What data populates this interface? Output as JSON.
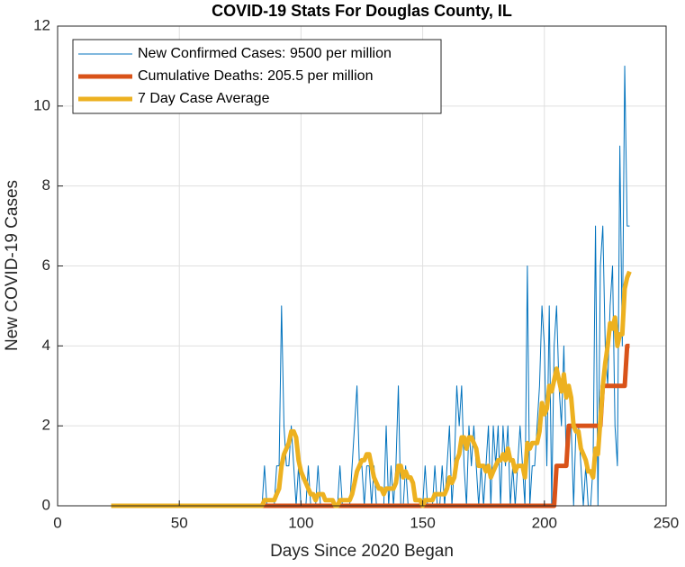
{
  "chart_data": {
    "type": "line",
    "title": "COVID-19 Stats For Douglas County, IL",
    "x_label": "Days Since 2020 Began",
    "y_label": "New COVID-19 Cases",
    "xlim": [
      0,
      250
    ],
    "xticks": [
      0,
      50,
      100,
      150,
      200,
      250
    ],
    "ylim": [
      0,
      12
    ],
    "yticks": [
      0,
      2,
      4,
      6,
      8,
      10,
      12
    ],
    "grid": true,
    "legend_position": "upper-left",
    "x": [
      22,
      23,
      24,
      25,
      26,
      27,
      28,
      29,
      30,
      31,
      32,
      33,
      34,
      35,
      36,
      37,
      38,
      39,
      40,
      41,
      42,
      43,
      44,
      45,
      46,
      47,
      48,
      49,
      50,
      51,
      52,
      53,
      54,
      55,
      56,
      57,
      58,
      59,
      60,
      61,
      62,
      63,
      64,
      65,
      66,
      67,
      68,
      69,
      70,
      71,
      72,
      73,
      74,
      75,
      76,
      77,
      78,
      79,
      80,
      81,
      82,
      83,
      84,
      85,
      86,
      87,
      88,
      89,
      90,
      91,
      92,
      93,
      94,
      95,
      96,
      97,
      98,
      99,
      100,
      101,
      102,
      103,
      104,
      105,
      106,
      107,
      108,
      109,
      110,
      111,
      112,
      113,
      114,
      115,
      116,
      117,
      118,
      119,
      120,
      121,
      122,
      123,
      124,
      125,
      126,
      127,
      128,
      129,
      130,
      131,
      132,
      133,
      134,
      135,
      136,
      137,
      138,
      139,
      140,
      141,
      142,
      143,
      144,
      145,
      146,
      147,
      148,
      149,
      150,
      151,
      152,
      153,
      154,
      155,
      156,
      157,
      158,
      159,
      160,
      161,
      162,
      163,
      164,
      165,
      166,
      167,
      168,
      169,
      170,
      171,
      172,
      173,
      174,
      175,
      176,
      177,
      178,
      179,
      180,
      181,
      182,
      183,
      184,
      185,
      186,
      187,
      188,
      189,
      190,
      191,
      192,
      193,
      194,
      195,
      196,
      197,
      198,
      199,
      200,
      201,
      202,
      203,
      204,
      205,
      206,
      207,
      208,
      209,
      210,
      211,
      212,
      213,
      214,
      215,
      216,
      217,
      218,
      219,
      220,
      221,
      222,
      223,
      224,
      225,
      226,
      227,
      228,
      229,
      230,
      231,
      232,
      233,
      234,
      235
    ],
    "series": [
      {
        "name": "New Confirmed Cases: 9500 per million",
        "color": "#0072BD",
        "width": 1,
        "values": [
          0,
          0,
          0,
          0,
          0,
          0,
          0,
          0,
          0,
          0,
          0,
          0,
          0,
          0,
          0,
          0,
          0,
          0,
          0,
          0,
          0,
          0,
          0,
          0,
          0,
          0,
          0,
          0,
          0,
          0,
          0,
          0,
          0,
          0,
          0,
          0,
          0,
          0,
          0,
          0,
          0,
          0,
          0,
          0,
          0,
          0,
          0,
          0,
          0,
          0,
          0,
          0,
          0,
          0,
          0,
          0,
          0,
          0,
          0,
          0,
          0,
          0,
          0,
          1,
          0,
          0,
          0,
          0,
          1,
          1,
          5,
          2,
          1,
          1,
          2,
          1,
          0,
          1,
          0,
          0,
          0,
          1,
          0,
          0,
          0,
          1,
          0,
          0,
          0,
          0,
          0,
          0,
          0,
          0,
          1,
          0,
          0,
          0,
          0,
          1,
          2,
          3,
          1,
          1,
          0,
          1,
          1,
          0,
          1,
          0,
          0,
          0,
          0,
          2,
          0,
          1,
          0,
          1,
          3,
          0,
          0,
          1,
          0,
          0,
          0,
          0,
          0,
          0,
          0,
          1,
          0,
          0,
          0,
          1,
          0,
          0,
          1,
          0,
          1,
          2,
          0,
          1,
          3,
          2,
          3,
          1,
          0,
          2,
          1,
          2,
          1,
          0,
          1,
          0,
          1,
          2,
          0,
          2,
          1,
          2,
          0,
          2,
          1,
          2,
          0,
          1,
          0,
          1,
          2,
          1,
          0,
          6,
          0,
          1,
          1,
          2,
          3,
          5,
          4,
          1,
          5,
          0,
          4,
          5,
          3,
          2,
          4,
          1,
          2,
          2,
          0,
          2,
          2,
          1,
          0,
          1,
          0,
          0,
          1,
          7,
          0,
          6,
          7,
          4,
          3,
          5,
          6,
          2,
          1,
          9,
          4,
          11,
          7,
          7
        ]
      },
      {
        "name": "Cumulative Deaths: 205.5 per million",
        "color": "#D95319",
        "width": 5,
        "values": [
          0,
          0,
          0,
          0,
          0,
          0,
          0,
          0,
          0,
          0,
          0,
          0,
          0,
          0,
          0,
          0,
          0,
          0,
          0,
          0,
          0,
          0,
          0,
          0,
          0,
          0,
          0,
          0,
          0,
          0,
          0,
          0,
          0,
          0,
          0,
          0,
          0,
          0,
          0,
          0,
          0,
          0,
          0,
          0,
          0,
          0,
          0,
          0,
          0,
          0,
          0,
          0,
          0,
          0,
          0,
          0,
          0,
          0,
          0,
          0,
          0,
          0,
          0,
          0,
          0,
          0,
          0,
          0,
          0,
          0,
          0,
          0,
          0,
          0,
          0,
          0,
          0,
          0,
          0,
          0,
          0,
          0,
          0,
          0,
          0,
          0,
          0,
          0,
          0,
          0,
          0,
          0,
          0,
          0,
          0,
          0,
          0,
          0,
          0,
          0,
          0,
          0,
          0,
          0,
          0,
          0,
          0,
          0,
          0,
          0,
          0,
          0,
          0,
          0,
          0,
          0,
          0,
          0,
          0,
          0,
          0,
          0,
          0,
          0,
          0,
          0,
          0,
          0,
          0,
          0,
          0,
          0,
          0,
          0,
          0,
          0,
          0,
          0,
          0,
          0,
          0,
          0,
          0,
          0,
          0,
          0,
          0,
          0,
          0,
          0,
          0,
          0,
          0,
          0,
          0,
          0,
          0,
          0,
          0,
          0,
          0,
          0,
          0,
          0,
          0,
          0,
          0,
          0,
          0,
          0,
          0,
          0,
          0,
          0,
          0,
          0,
          0,
          0,
          0,
          0,
          0,
          0,
          0,
          1,
          1,
          1,
          1,
          1,
          2,
          2,
          2,
          2,
          2,
          2,
          2,
          2,
          2,
          2,
          2,
          2,
          2,
          2,
          3,
          3,
          3,
          3,
          3,
          3,
          3,
          3,
          3,
          3,
          4,
          4
        ]
      },
      {
        "name": "7 Day Case Average",
        "color": "#EDB120",
        "width": 5,
        "values": [
          0,
          0,
          0,
          0,
          0,
          0,
          0,
          0,
          0,
          0,
          0,
          0,
          0,
          0,
          0,
          0,
          0,
          0,
          0,
          0,
          0,
          0,
          0,
          0,
          0,
          0,
          0,
          0,
          0,
          0,
          0,
          0,
          0,
          0,
          0,
          0,
          0,
          0,
          0,
          0,
          0,
          0,
          0,
          0,
          0,
          0,
          0,
          0,
          0,
          0,
          0,
          0,
          0,
          0,
          0,
          0,
          0,
          0,
          0,
          0,
          0,
          0,
          0,
          0.14,
          0.14,
          0.14,
          0.14,
          0.14,
          0.29,
          0.43,
          1,
          1.29,
          1.43,
          1.57,
          1.86,
          1.86,
          1.71,
          1.14,
          0.86,
          0.71,
          0.57,
          0.43,
          0.29,
          0.29,
          0.14,
          0.29,
          0.29,
          0.29,
          0.14,
          0.14,
          0.14,
          0.14,
          0,
          0,
          0.14,
          0.14,
          0.14,
          0.14,
          0.14,
          0.29,
          0.57,
          0.86,
          1,
          1.14,
          1.14,
          1.29,
          1.29,
          1,
          0.71,
          0.57,
          0.43,
          0.43,
          0.29,
          0.43,
          0.43,
          0.43,
          0.43,
          0.57,
          1,
          1,
          0.71,
          0.86,
          0.71,
          0.71,
          0.57,
          0.14,
          0.14,
          0.14,
          0,
          0.14,
          0.14,
          0.14,
          0.14,
          0.29,
          0.29,
          0.29,
          0.29,
          0.29,
          0.43,
          0.71,
          0.57,
          0.71,
          1.14,
          1.29,
          1.71,
          1.71,
          1.43,
          1.71,
          1.71,
          1.57,
          1.43,
          1,
          1,
          1,
          0.86,
          1,
          0.71,
          0.86,
          1,
          1.14,
          1.14,
          1.29,
          1.14,
          1.43,
          1.14,
          1.14,
          0.86,
          1,
          1,
          1,
          0.71,
          1.57,
          1.43,
          1.57,
          1.57,
          1.57,
          1.86,
          2.57,
          2.29,
          2.43,
          3,
          2.86,
          3.14,
          3.43,
          3.14,
          2.86,
          3.29,
          2.71,
          3,
          2.71,
          2,
          1.86,
          1.86,
          1.43,
          1.29,
          1.14,
          0.86,
          0.86,
          0.71,
          1.43,
          1.29,
          2.14,
          3,
          3.57,
          4,
          4.57,
          4.43,
          4.71,
          4,
          4.29,
          4.29,
          5.43,
          5.71,
          5.86
        ]
      }
    ]
  }
}
